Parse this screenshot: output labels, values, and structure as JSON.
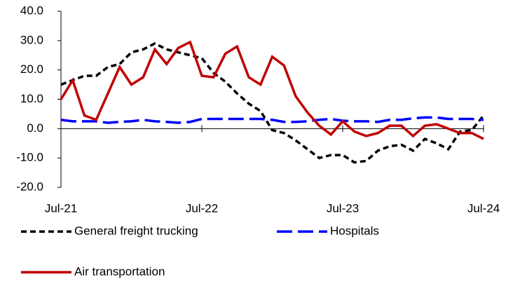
{
  "chart_data": {
    "type": "line",
    "categories": [
      "Jul-21",
      null,
      null,
      null,
      null,
      null,
      null,
      null,
      null,
      null,
      null,
      null,
      "Jul-22",
      null,
      null,
      null,
      null,
      null,
      null,
      null,
      null,
      null,
      null,
      null,
      "Jul-23",
      null,
      null,
      null,
      null,
      null,
      null,
      null,
      null,
      null,
      null,
      null,
      "Jul-24"
    ],
    "series": [
      {
        "name": "General freight trucking",
        "color": "#000000",
        "dash": "8,5",
        "values": [
          15,
          16.5,
          18,
          18,
          21,
          22,
          26,
          27,
          29,
          27,
          26,
          25,
          24,
          19,
          16,
          12,
          8.5,
          6,
          -0.5,
          -1.5,
          -4,
          -7,
          -10,
          -9,
          -9,
          -11.5,
          -11,
          -7.5,
          -6,
          -5.5,
          -7.5,
          -3.5,
          -5,
          -7,
          -1,
          -0.5,
          4.5
        ]
      },
      {
        "name": "Hospitals",
        "color": "#0000ff",
        "dash": "22,8",
        "values": [
          3,
          2.5,
          2.5,
          2.5,
          2,
          2.3,
          2.5,
          3,
          2.5,
          2.3,
          2,
          2.3,
          3.3,
          3.3,
          3.3,
          3.3,
          3.3,
          3.3,
          3,
          2.3,
          2.3,
          2.5,
          3,
          3.3,
          2.7,
          2.5,
          2.5,
          2.3,
          3,
          3,
          3.5,
          3.8,
          3.8,
          3.3,
          3.3,
          3.3,
          3
        ]
      },
      {
        "name": "Air transportation",
        "color": "#c00000",
        "dash": null,
        "values": [
          10,
          16.5,
          4.5,
          3,
          12,
          21,
          15,
          17.5,
          27,
          22,
          27.5,
          29.5,
          18,
          17.5,
          25.5,
          28,
          17.5,
          15,
          24.5,
          21.5,
          11,
          5.5,
          1,
          -2,
          2.5,
          -1,
          -2.5,
          -1.5,
          1,
          1,
          -2.5,
          1,
          1.5,
          0,
          -1.5,
          -1.5,
          -3.5
        ]
      }
    ],
    "ylim": [
      -20,
      40
    ],
    "yticks": [
      {
        "value": -20,
        "label": "-20.0"
      },
      {
        "value": -10,
        "label": "-10.0"
      },
      {
        "value": 0,
        "label": "0.0"
      },
      {
        "value": 10,
        "label": "10.0"
      },
      {
        "value": 20,
        "label": "20.0"
      },
      {
        "value": 30,
        "label": "30.0"
      },
      {
        "value": 40,
        "label": "40.0"
      }
    ],
    "grid": false
  }
}
